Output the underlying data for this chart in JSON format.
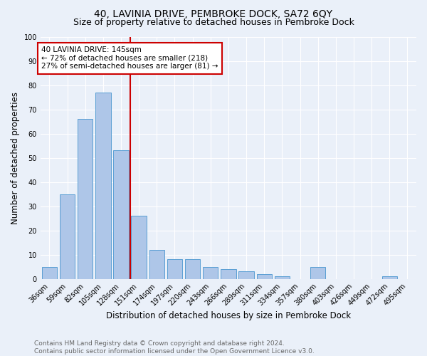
{
  "title": "40, LAVINIA DRIVE, PEMBROKE DOCK, SA72 6QY",
  "subtitle": "Size of property relative to detached houses in Pembroke Dock",
  "xlabel": "Distribution of detached houses by size in Pembroke Dock",
  "ylabel": "Number of detached properties",
  "categories": [
    "36sqm",
    "59sqm",
    "82sqm",
    "105sqm",
    "128sqm",
    "151sqm",
    "174sqm",
    "197sqm",
    "220sqm",
    "243sqm",
    "266sqm",
    "289sqm",
    "311sqm",
    "334sqm",
    "357sqm",
    "380sqm",
    "403sqm",
    "426sqm",
    "449sqm",
    "472sqm",
    "495sqm"
  ],
  "values": [
    5,
    35,
    66,
    77,
    53,
    26,
    12,
    8,
    8,
    5,
    4,
    3,
    2,
    1,
    0,
    5,
    0,
    0,
    0,
    1,
    0
  ],
  "bar_color": "#aec6e8",
  "bar_edge_color": "#5a9fd4",
  "background_color": "#eaf0f9",
  "grid_color": "#ffffff",
  "annotation_text": "40 LAVINIA DRIVE: 145sqm\n← 72% of detached houses are smaller (218)\n27% of semi-detached houses are larger (81) →",
  "annotation_box_color": "#ffffff",
  "annotation_box_edge": "#cc0000",
  "vline_color": "#cc0000",
  "footer_text": "Contains HM Land Registry data © Crown copyright and database right 2024.\nContains public sector information licensed under the Open Government Licence v3.0.",
  "ylim": [
    0,
    100
  ],
  "title_fontsize": 10,
  "subtitle_fontsize": 9,
  "xlabel_fontsize": 8.5,
  "ylabel_fontsize": 8.5,
  "tick_fontsize": 7,
  "annotation_fontsize": 7.5,
  "footer_fontsize": 6.5
}
